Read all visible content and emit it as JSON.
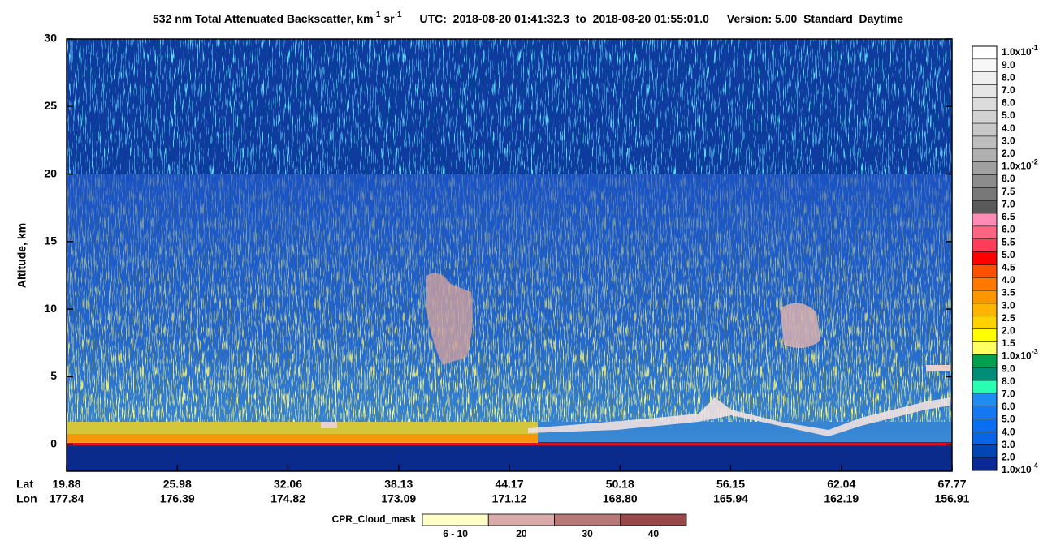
{
  "chart_data": {
    "type": "heatmap",
    "title_parts": [
      {
        "text": "532 nm Total Attenuated Backscatter, km"
      },
      {
        "sup": "-1"
      },
      {
        "text": " sr"
      },
      {
        "sup": "-1"
      }
    ],
    "time_info": "UTC:  2018-08-20 01:41:32.3  to  2018-08-20 01:55:01.0",
    "version_info": "Version: 5.00  Standard  Daytime",
    "y_label": "Altitude, km",
    "ylim": [
      -2,
      30
    ],
    "yticks": [
      0,
      5,
      10,
      15,
      20,
      25,
      30
    ],
    "x_row_labels": [
      "Lat",
      "Lon"
    ],
    "lat": [
      19.88,
      25.98,
      32.06,
      38.13,
      44.17,
      50.18,
      56.15,
      62.04,
      67.77
    ],
    "lon": [
      177.84,
      176.39,
      174.82,
      173.09,
      171.12,
      {
        "value": 168.8,
        "label": "168.80"
      },
      165.94,
      162.19,
      156.91
    ],
    "colorbar": {
      "labels": [
        {
          "text": "1.0x10",
          "sup": "-1"
        },
        "9.0",
        "8.0",
        "7.0",
        "6.0",
        "5.0",
        "4.0",
        "3.0",
        "2.0",
        {
          "text": "1.0x10",
          "sup": "-2"
        },
        "8.0",
        "7.5",
        "7.0",
        "6.5",
        "6.0",
        "5.5",
        "5.0",
        "4.5",
        "4.0",
        "3.5",
        "3.0",
        "2.5",
        "2.0",
        "1.5",
        {
          "text": "1.0x10",
          "sup": "-3"
        },
        "9.0",
        "8.0",
        "7.0",
        "6.0",
        "5.0",
        "4.0",
        "3.0",
        "2.0",
        {
          "text": "1.0x10",
          "sup": "-4"
        }
      ],
      "colors": [
        "#ffffff",
        "#f7f7f7",
        "#efefef",
        "#e6e6e6",
        "#dcdcdc",
        "#d2d2d2",
        "#c8c8c8",
        "#bdbdbd",
        "#b0b0b0",
        "#a0a0a0",
        "#8c8c8c",
        "#787878",
        "#5a5a5a",
        "#ff8cb4",
        "#ff6482",
        "#ff3c5a",
        "#ff0000",
        "#ff5000",
        "#ff7800",
        "#ff9600",
        "#ffb400",
        "#ffd200",
        "#ffff00",
        "#ffff64",
        "#00a050",
        "#008c78",
        "#28ffb4",
        "#1e8cf0",
        "#1478f0",
        "#0a6ef0",
        "#0a64e6",
        "#0046b4",
        "#0a2896"
      ]
    },
    "cpr_mask": {
      "title": "CPR_Cloud_mask",
      "labels": [
        "6 - 10",
        "20",
        "30",
        "40"
      ],
      "colors": [
        "#ffffc8",
        "#d8aaaa",
        "#b87878",
        "#984848"
      ]
    }
  }
}
